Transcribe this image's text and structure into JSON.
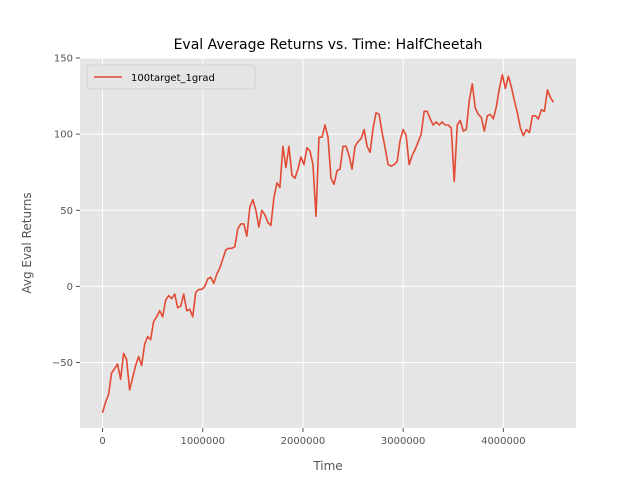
{
  "chart_data": {
    "type": "line",
    "title": "Eval Average Returns vs. Time: HalfCheetah",
    "xlabel": "Time",
    "ylabel": "Avg Eval Returns",
    "xlim": [
      -225000,
      4725000
    ],
    "ylim": [
      -93,
      150
    ],
    "xticks": [
      0,
      1000000,
      2000000,
      3000000,
      4000000
    ],
    "xtick_labels": [
      "0",
      "1000000",
      "2000000",
      "3000000",
      "4000000"
    ],
    "yticks": [
      -50,
      0,
      50,
      100,
      150
    ],
    "ytick_labels": [
      "−50",
      "0",
      "50",
      "100",
      "150"
    ],
    "grid": true,
    "legend_position": "upper-left",
    "colors": {
      "background": "#e5e5e5",
      "grid": "#ffffff",
      "line": "#e24a33"
    },
    "series": [
      {
        "name": "100target_1grad",
        "color": "#e24a33",
        "points": [
          [
            0,
            -83
          ],
          [
            30000,
            -76
          ],
          [
            60000,
            -71
          ],
          [
            90000,
            -57
          ],
          [
            120000,
            -54
          ],
          [
            150000,
            -51
          ],
          [
            180000,
            -61
          ],
          [
            210000,
            -44
          ],
          [
            240000,
            -48
          ],
          [
            270000,
            -68
          ],
          [
            300000,
            -60
          ],
          [
            330000,
            -52
          ],
          [
            360000,
            -46
          ],
          [
            390000,
            -52
          ],
          [
            420000,
            -38
          ],
          [
            450000,
            -33
          ],
          [
            480000,
            -35
          ],
          [
            510000,
            -23
          ],
          [
            540000,
            -20
          ],
          [
            570000,
            -16
          ],
          [
            600000,
            -20
          ],
          [
            630000,
            -9
          ],
          [
            660000,
            -6
          ],
          [
            690000,
            -8
          ],
          [
            720000,
            -5
          ],
          [
            750000,
            -14
          ],
          [
            780000,
            -13
          ],
          [
            810000,
            -5
          ],
          [
            840000,
            -16
          ],
          [
            870000,
            -15
          ],
          [
            900000,
            -20
          ],
          [
            930000,
            -4
          ],
          [
            960000,
            -2
          ],
          [
            990000,
            -2
          ],
          [
            1020000,
            0
          ],
          [
            1050000,
            5
          ],
          [
            1080000,
            6
          ],
          [
            1110000,
            2
          ],
          [
            1140000,
            8
          ],
          [
            1170000,
            12
          ],
          [
            1200000,
            18
          ],
          [
            1230000,
            24
          ],
          [
            1260000,
            25
          ],
          [
            1290000,
            25
          ],
          [
            1320000,
            26
          ],
          [
            1350000,
            38
          ],
          [
            1380000,
            41
          ],
          [
            1410000,
            41
          ],
          [
            1440000,
            33
          ],
          [
            1470000,
            52
          ],
          [
            1500000,
            57
          ],
          [
            1530000,
            50
          ],
          [
            1560000,
            39
          ],
          [
            1590000,
            50
          ],
          [
            1620000,
            47
          ],
          [
            1650000,
            42
          ],
          [
            1680000,
            40
          ],
          [
            1710000,
            58
          ],
          [
            1740000,
            68
          ],
          [
            1770000,
            65
          ],
          [
            1800000,
            92
          ],
          [
            1830000,
            78
          ],
          [
            1860000,
            92
          ],
          [
            1890000,
            73
          ],
          [
            1920000,
            71
          ],
          [
            1950000,
            77
          ],
          [
            1980000,
            85
          ],
          [
            2010000,
            80
          ],
          [
            2040000,
            91
          ],
          [
            2070000,
            89
          ],
          [
            2100000,
            80
          ],
          [
            2130000,
            46
          ],
          [
            2160000,
            98
          ],
          [
            2190000,
            98
          ],
          [
            2220000,
            106
          ],
          [
            2250000,
            98
          ],
          [
            2280000,
            71
          ],
          [
            2310000,
            67
          ],
          [
            2340000,
            76
          ],
          [
            2370000,
            77
          ],
          [
            2400000,
            92
          ],
          [
            2430000,
            92
          ],
          [
            2460000,
            86
          ],
          [
            2490000,
            77
          ],
          [
            2520000,
            92
          ],
          [
            2550000,
            95
          ],
          [
            2580000,
            97
          ],
          [
            2610000,
            103
          ],
          [
            2640000,
            92
          ],
          [
            2670000,
            88
          ],
          [
            2700000,
            104
          ],
          [
            2730000,
            114
          ],
          [
            2760000,
            113
          ],
          [
            2790000,
            101
          ],
          [
            2820000,
            91
          ],
          [
            2850000,
            80
          ],
          [
            2880000,
            79
          ],
          [
            2910000,
            80
          ],
          [
            2940000,
            82
          ],
          [
            2970000,
            96
          ],
          [
            3000000,
            103
          ],
          [
            3030000,
            99
          ],
          [
            3060000,
            80
          ],
          [
            3090000,
            86
          ],
          [
            3120000,
            90
          ],
          [
            3150000,
            95
          ],
          [
            3180000,
            100
          ],
          [
            3210000,
            115
          ],
          [
            3240000,
            115
          ],
          [
            3270000,
            110
          ],
          [
            3300000,
            106
          ],
          [
            3330000,
            108
          ],
          [
            3360000,
            106
          ],
          [
            3390000,
            108
          ],
          [
            3420000,
            106
          ],
          [
            3450000,
            106
          ],
          [
            3480000,
            104
          ],
          [
            3510000,
            69
          ],
          [
            3540000,
            106
          ],
          [
            3570000,
            109
          ],
          [
            3600000,
            102
          ],
          [
            3630000,
            103
          ],
          [
            3660000,
            122
          ],
          [
            3690000,
            133
          ],
          [
            3720000,
            117
          ],
          [
            3750000,
            113
          ],
          [
            3780000,
            111
          ],
          [
            3810000,
            102
          ],
          [
            3840000,
            112
          ],
          [
            3870000,
            113
          ],
          [
            3900000,
            110
          ],
          [
            3930000,
            118
          ],
          [
            3960000,
            130
          ],
          [
            3990000,
            139
          ],
          [
            4020000,
            130
          ],
          [
            4050000,
            138
          ],
          [
            4080000,
            131
          ],
          [
            4110000,
            122
          ],
          [
            4140000,
            114
          ],
          [
            4170000,
            104
          ],
          [
            4200000,
            99
          ],
          [
            4230000,
            103
          ],
          [
            4260000,
            101
          ],
          [
            4290000,
            112
          ],
          [
            4320000,
            112
          ],
          [
            4350000,
            110
          ],
          [
            4380000,
            116
          ],
          [
            4410000,
            115
          ],
          [
            4440000,
            129
          ],
          [
            4470000,
            124
          ],
          [
            4500000,
            121
          ]
        ]
      }
    ]
  }
}
